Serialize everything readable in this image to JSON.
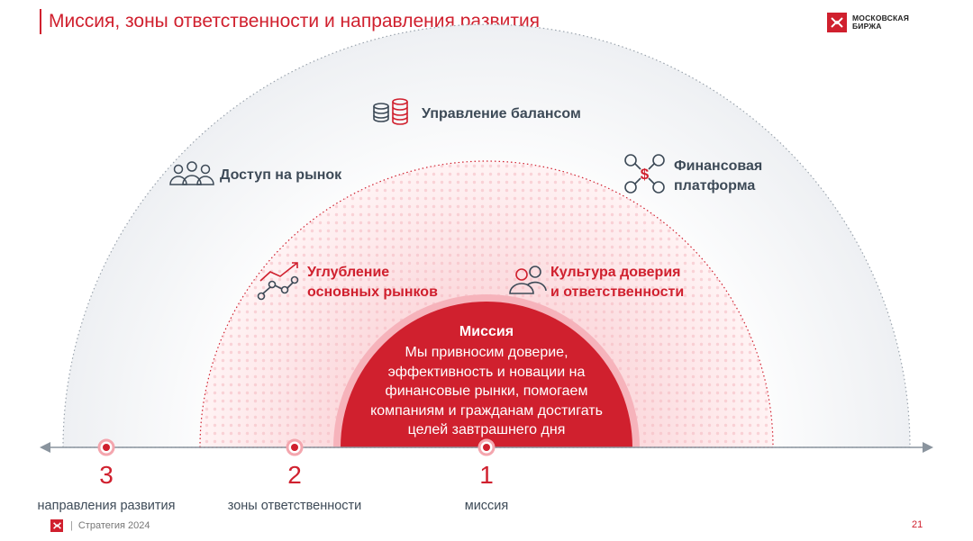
{
  "header": {
    "title": "Миссия, зоны ответственности и направления развития",
    "logo_line1": "МОСКОВСКАЯ",
    "logo_line2": "БИРЖА"
  },
  "outer_zone": {
    "items": [
      {
        "label": "Управление балансом",
        "icon": "coins-stack-icon"
      },
      {
        "label": "Доступ на рынок",
        "icon": "people-group-icon"
      },
      {
        "label_line1": "Финансовая",
        "label_line2": "платформа",
        "icon": "network-dollar-icon"
      }
    ]
  },
  "middle_zone": {
    "items": [
      {
        "label_line1": "Углубление",
        "label_line2": "основных рынков",
        "icon": "growth-chart-icon"
      },
      {
        "label_line1": "Культура доверия",
        "label_line2": "и ответственности",
        "icon": "two-people-icon"
      }
    ]
  },
  "mission": {
    "title": "Миссия",
    "text": "Мы привносим доверие,\nэффективность и новации на\nфинансовые рынки, помогаем\nкомпаниям и гражданам достигать\nцелей завтрашнего дня"
  },
  "axis": {
    "markers": [
      {
        "number": "3",
        "caption": "направления развития"
      },
      {
        "number": "2",
        "caption": "зоны ответственности"
      },
      {
        "number": "1",
        "caption": "миссия"
      }
    ]
  },
  "footer": {
    "text": "Стратегия 2024",
    "page": "21"
  },
  "colors": {
    "accent": "#d0202e",
    "text_gray": "#3d4a57"
  }
}
